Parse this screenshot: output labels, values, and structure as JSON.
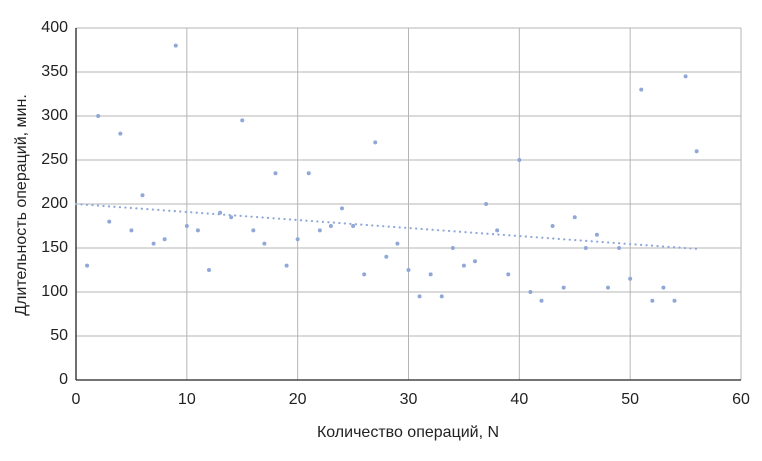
{
  "chart_data": {
    "type": "scatter",
    "xlabel": "Количество операций, N",
    "ylabel": "Длительность операций, мин.",
    "xlim": [
      0,
      60
    ],
    "xticks": [
      0,
      10,
      20,
      30,
      40,
      50,
      60
    ],
    "ylim": [
      0,
      400
    ],
    "yticks": [
      0,
      50,
      100,
      150,
      200,
      250,
      300,
      350,
      400
    ],
    "grid": true,
    "series": [
      {
        "color": "#8fa8d8",
        "x": [
          1,
          2,
          3,
          4,
          5,
          6,
          7,
          8,
          9,
          10,
          11,
          12,
          13,
          14,
          15,
          16,
          17,
          18,
          19,
          20,
          21,
          22,
          23,
          24,
          25,
          26,
          27,
          28,
          29,
          30,
          31,
          32,
          33,
          34,
          35,
          36,
          37,
          38,
          39,
          40,
          41,
          42,
          43,
          44,
          45,
          46,
          47,
          48,
          49,
          50,
          51,
          52,
          53,
          54,
          55,
          56
        ],
        "values": [
          130,
          300,
          180,
          280,
          170,
          210,
          155,
          160,
          380,
          175,
          170,
          125,
          190,
          185,
          295,
          170,
          155,
          235,
          130,
          160,
          235,
          170,
          175,
          195,
          175,
          120,
          270,
          140,
          155,
          125,
          95,
          120,
          95,
          150,
          130,
          135,
          200,
          170,
          120,
          250,
          100,
          90,
          175,
          105,
          185,
          150,
          165,
          105,
          150,
          115,
          330,
          90,
          105,
          90,
          345,
          260
        ]
      }
    ],
    "trendline": {
      "color": "#8fa8d8",
      "x": [
        0,
        56
      ],
      "values": [
        200,
        149
      ]
    }
  }
}
